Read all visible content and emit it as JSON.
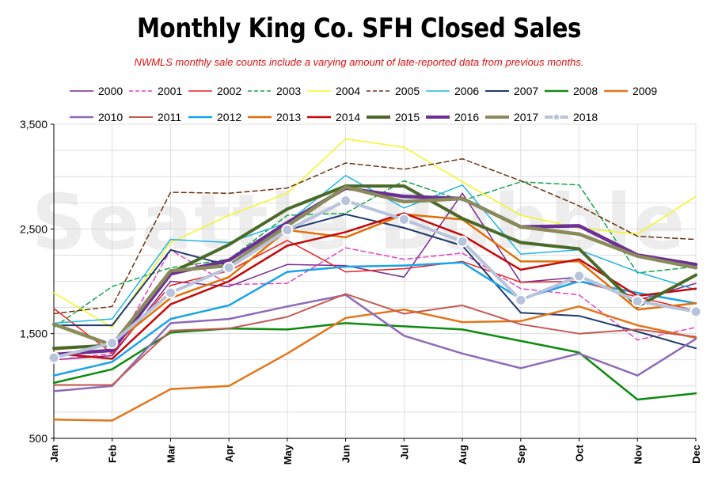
{
  "title": "Monthly King Co. SFH Closed Sales",
  "subtitle": "NWMLS monthly sale counts include a varying amount of late-reported  data from previous months.",
  "watermark": "Seattle Bubble",
  "chart_data": {
    "type": "line",
    "categories": [
      "Jan",
      "Feb",
      "Mar",
      "Apr",
      "May",
      "Jun",
      "Jul",
      "Aug",
      "Sep",
      "Oct",
      "Nov",
      "Dec"
    ],
    "ylim": [
      500,
      3500
    ],
    "yticks": [
      "500",
      "1,500",
      "2,500",
      "3,500"
    ],
    "grid": true,
    "legend": "top",
    "series": [
      {
        "name": "2000",
        "color": "#7a2b8e",
        "dash": "solid",
        "width": 1.5,
        "values": [
          1250,
          1290,
          2000,
          1950,
          2160,
          2150,
          2040,
          2840,
          1990,
          2040,
          1820,
          1980
        ]
      },
      {
        "name": "2001",
        "color": "#e83fc1",
        "dash": "dashed",
        "width": 1.5,
        "values": [
          1250,
          1310,
          2300,
          1970,
          1980,
          2320,
          2210,
          2270,
          1930,
          1870,
          1440,
          1560
        ]
      },
      {
        "name": "2002",
        "color": "#e82020",
        "dash": "solid",
        "width": 1.5,
        "values": [
          1740,
          1310,
          1960,
          2100,
          2390,
          2090,
          2120,
          2190,
          1990,
          2000,
          1850,
          1720
        ]
      },
      {
        "name": "2003",
        "color": "#16a34a",
        "dash": "dashed",
        "width": 1.5,
        "values": [
          1560,
          1950,
          2130,
          2210,
          2630,
          2650,
          2960,
          2770,
          2950,
          2920,
          2080,
          2140
        ]
      },
      {
        "name": "2004",
        "color": "#f5f520",
        "dash": "solid",
        "width": 1.5,
        "values": [
          1890,
          1560,
          2370,
          2630,
          2840,
          3360,
          3280,
          2950,
          2630,
          2510,
          2450,
          2810
        ]
      },
      {
        "name": "2005",
        "color": "#6b3410",
        "dash": "dashed",
        "width": 1.5,
        "values": [
          1690,
          1760,
          2850,
          2840,
          2890,
          3130,
          3070,
          3170,
          2960,
          2720,
          2430,
          2400
        ]
      },
      {
        "name": "2006",
        "color": "#22b5e0",
        "dash": "solid",
        "width": 1.5,
        "values": [
          1600,
          1640,
          2400,
          2370,
          2560,
          3010,
          2700,
          2920,
          2260,
          2300,
          2090,
          1920
        ]
      },
      {
        "name": "2007",
        "color": "#1e3a6e",
        "dash": "solid",
        "width": 2,
        "values": [
          1580,
          1580,
          2300,
          2150,
          2490,
          2640,
          2510,
          2340,
          1700,
          1670,
          1520,
          1360
        ]
      },
      {
        "name": "2008",
        "color": "#0f8a0f",
        "dash": "solid",
        "width": 2.5,
        "values": [
          1030,
          1160,
          1510,
          1550,
          1540,
          1600,
          1570,
          1540,
          1430,
          1320,
          870,
          930
        ]
      },
      {
        "name": "2009",
        "color": "#e2761a",
        "dash": "solid",
        "width": 2.5,
        "values": [
          680,
          670,
          970,
          1000,
          1310,
          1650,
          1730,
          1610,
          1620,
          1760,
          1580,
          1460
        ]
      },
      {
        "name": "2010",
        "color": "#8e6bb8",
        "dash": "solid",
        "width": 2.5,
        "values": [
          950,
          1000,
          1600,
          1640,
          1760,
          1870,
          1480,
          1310,
          1170,
          1310,
          1100,
          1450
        ]
      },
      {
        "name": "2011",
        "color": "#c45a55",
        "dash": "solid",
        "width": 2,
        "values": [
          1010,
          1010,
          1530,
          1550,
          1660,
          1880,
          1690,
          1770,
          1590,
          1500,
          1540,
          1470
        ]
      },
      {
        "name": "2012",
        "color": "#1aa3e8",
        "dash": "solid",
        "width": 2.5,
        "values": [
          1100,
          1230,
          1640,
          1770,
          2090,
          2140,
          2150,
          2180,
          1830,
          2000,
          1890,
          1790
        ]
      },
      {
        "name": "2013",
        "color": "#e0700a",
        "dash": "solid",
        "width": 2.5,
        "values": [
          1350,
          1390,
          1840,
          2040,
          2490,
          2420,
          2640,
          2590,
          2190,
          2190,
          1730,
          1790
        ]
      },
      {
        "name": "2014",
        "color": "#c40a0a",
        "dash": "solid",
        "width": 2.5,
        "values": [
          1310,
          1260,
          1780,
          2000,
          2340,
          2470,
          2650,
          2440,
          2110,
          2210,
          1860,
          1930
        ]
      },
      {
        "name": "2015",
        "color": "#4a6a28",
        "dash": "solid",
        "width": 4,
        "values": [
          1360,
          1390,
          2080,
          2350,
          2690,
          2910,
          2910,
          2600,
          2370,
          2310,
          1760,
          2060
        ]
      },
      {
        "name": "2016",
        "color": "#6b2f96",
        "dash": "solid",
        "width": 4.5,
        "values": [
          1300,
          1340,
          2070,
          2200,
          2560,
          2890,
          2810,
          2790,
          2520,
          2530,
          2250,
          2160
        ]
      },
      {
        "name": "2017",
        "color": "#8a8a5a",
        "dash": "solid",
        "width": 4.5,
        "values": [
          1590,
          1390,
          2100,
          2150,
          2530,
          2900,
          2760,
          2790,
          2520,
          2450,
          2240,
          2130
        ]
      },
      {
        "name": "2018",
        "color": "#b8c4dc",
        "dash": "solid",
        "width": 4,
        "marker": true,
        "values": [
          1270,
          1410,
          1890,
          2130,
          2490,
          2770,
          2590,
          2380,
          1820,
          2050,
          1810,
          1710
        ]
      }
    ]
  }
}
